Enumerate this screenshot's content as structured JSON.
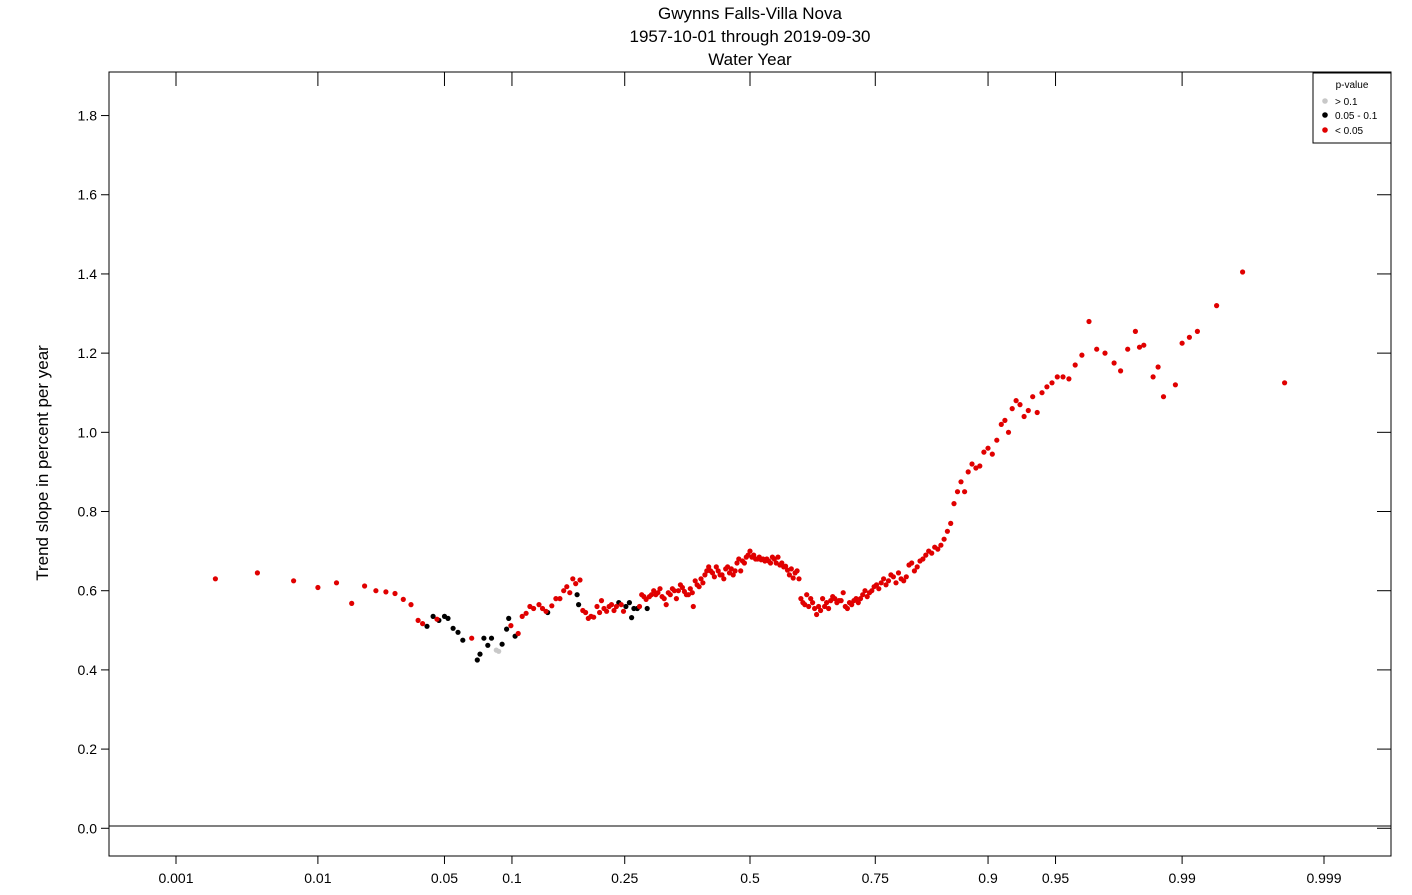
{
  "chart_data": {
    "type": "scatter",
    "title": "Gwynns Falls-Villa Nova",
    "subtitle": "1957-10-01 through 2019-09-30",
    "subtitle2": "Water Year",
    "xlabel": "",
    "ylabel": "Trend slope in percent per year",
    "x_scale": "probability (normal quantile)",
    "x_ticks": [
      "0.001",
      "0.01",
      "0.05",
      "0.1",
      "0.25",
      "0.5",
      "0.75",
      "0.9",
      "0.95",
      "0.99",
      "0.999"
    ],
    "y_ticks": [
      "0.0",
      "0.2",
      "0.4",
      "0.6",
      "0.8",
      "1.0",
      "1.2",
      "1.4",
      "1.6",
      "1.8"
    ],
    "ylim": [
      -0.07,
      1.91
    ],
    "grid": false,
    "legend": {
      "title": "p-value",
      "position": "top-right",
      "entries": [
        {
          "label": "> 0.1",
          "color": "#c8c8c8"
        },
        {
          "label": "0.05 - 0.1",
          "color": "#000000"
        },
        {
          "label": "< 0.05",
          "color": "#e00000"
        }
      ]
    },
    "series": [
      {
        "color": "#c8c8c8",
        "points": [
          [
            0.086,
            0.45
          ],
          [
            0.088,
            0.447
          ]
        ]
      },
      {
        "color": "#000000",
        "points": [
          [
            0.041,
            0.51
          ],
          [
            0.044,
            0.535
          ],
          [
            0.047,
            0.525
          ],
          [
            0.05,
            0.535
          ],
          [
            0.052,
            0.53
          ],
          [
            0.055,
            0.505
          ],
          [
            0.058,
            0.495
          ],
          [
            0.061,
            0.475
          ],
          [
            0.071,
            0.425
          ],
          [
            0.073,
            0.44
          ],
          [
            0.076,
            0.48
          ],
          [
            0.079,
            0.462
          ],
          [
            0.082,
            0.48
          ],
          [
            0.091,
            0.465
          ],
          [
            0.095,
            0.503
          ],
          [
            0.097,
            0.53
          ],
          [
            0.103,
            0.485
          ],
          [
            0.138,
            0.545
          ],
          [
            0.176,
            0.59
          ],
          [
            0.178,
            0.565
          ],
          [
            0.24,
            0.57
          ],
          [
            0.252,
            0.56
          ],
          [
            0.258,
            0.57
          ],
          [
            0.262,
            0.532
          ],
          [
            0.266,
            0.555
          ],
          [
            0.272,
            0.555
          ],
          [
            0.29,
            0.555
          ]
        ]
      },
      {
        "color": "#e00000",
        "points": [
          [
            0.002,
            0.63
          ],
          [
            0.004,
            0.645
          ],
          [
            0.007,
            0.625
          ],
          [
            0.01,
            0.608
          ],
          [
            0.013,
            0.62
          ],
          [
            0.016,
            0.568
          ],
          [
            0.019,
            0.612
          ],
          [
            0.022,
            0.6
          ],
          [
            0.025,
            0.597
          ],
          [
            0.028,
            0.593
          ],
          [
            0.031,
            0.578
          ],
          [
            0.034,
            0.565
          ],
          [
            0.037,
            0.525
          ],
          [
            0.039,
            0.517
          ],
          [
            0.046,
            0.528
          ],
          [
            0.067,
            0.48
          ],
          [
            0.099,
            0.512
          ],
          [
            0.106,
            0.492
          ],
          [
            0.11,
            0.535
          ],
          [
            0.114,
            0.543
          ],
          [
            0.118,
            0.56
          ],
          [
            0.122,
            0.555
          ],
          [
            0.128,
            0.565
          ],
          [
            0.132,
            0.555
          ],
          [
            0.136,
            0.548
          ],
          [
            0.143,
            0.562
          ],
          [
            0.148,
            0.58
          ],
          [
            0.153,
            0.58
          ],
          [
            0.158,
            0.6
          ],
          [
            0.162,
            0.61
          ],
          [
            0.166,
            0.595
          ],
          [
            0.17,
            0.63
          ],
          [
            0.174,
            0.618
          ],
          [
            0.18,
            0.627
          ],
          [
            0.184,
            0.55
          ],
          [
            0.188,
            0.545
          ],
          [
            0.192,
            0.53
          ],
          [
            0.196,
            0.535
          ],
          [
            0.2,
            0.533
          ],
          [
            0.205,
            0.56
          ],
          [
            0.209,
            0.545
          ],
          [
            0.212,
            0.575
          ],
          [
            0.216,
            0.555
          ],
          [
            0.22,
            0.548
          ],
          [
            0.224,
            0.56
          ],
          [
            0.228,
            0.565
          ],
          [
            0.232,
            0.55
          ],
          [
            0.236,
            0.56
          ],
          [
            0.244,
            0.565
          ],
          [
            0.248,
            0.548
          ],
          [
            0.276,
            0.56
          ],
          [
            0.28,
            0.59
          ],
          [
            0.284,
            0.585
          ],
          [
            0.288,
            0.578
          ],
          [
            0.294,
            0.585
          ],
          [
            0.298,
            0.59
          ],
          [
            0.302,
            0.6
          ],
          [
            0.306,
            0.59
          ],
          [
            0.31,
            0.595
          ],
          [
            0.314,
            0.605
          ],
          [
            0.318,
            0.585
          ],
          [
            0.322,
            0.58
          ],
          [
            0.326,
            0.565
          ],
          [
            0.33,
            0.595
          ],
          [
            0.334,
            0.59
          ],
          [
            0.338,
            0.605
          ],
          [
            0.342,
            0.6
          ],
          [
            0.346,
            0.58
          ],
          [
            0.35,
            0.6
          ],
          [
            0.354,
            0.615
          ],
          [
            0.358,
            0.608
          ],
          [
            0.362,
            0.598
          ],
          [
            0.366,
            0.59
          ],
          [
            0.37,
            0.59
          ],
          [
            0.374,
            0.605
          ],
          [
            0.378,
            0.595
          ],
          [
            0.38,
            0.56
          ],
          [
            0.384,
            0.625
          ],
          [
            0.388,
            0.615
          ],
          [
            0.392,
            0.61
          ],
          [
            0.396,
            0.63
          ],
          [
            0.4,
            0.62
          ],
          [
            0.404,
            0.64
          ],
          [
            0.408,
            0.65
          ],
          [
            0.412,
            0.66
          ],
          [
            0.416,
            0.65
          ],
          [
            0.42,
            0.645
          ],
          [
            0.424,
            0.635
          ],
          [
            0.428,
            0.66
          ],
          [
            0.432,
            0.65
          ],
          [
            0.436,
            0.64
          ],
          [
            0.44,
            0.64
          ],
          [
            0.444,
            0.63
          ],
          [
            0.448,
            0.655
          ],
          [
            0.452,
            0.66
          ],
          [
            0.456,
            0.645
          ],
          [
            0.46,
            0.655
          ],
          [
            0.464,
            0.64
          ],
          [
            0.468,
            0.65
          ],
          [
            0.472,
            0.67
          ],
          [
            0.476,
            0.68
          ],
          [
            0.48,
            0.65
          ],
          [
            0.484,
            0.675
          ],
          [
            0.488,
            0.67
          ],
          [
            0.492,
            0.685
          ],
          [
            0.496,
            0.69
          ],
          [
            0.5,
            0.7
          ],
          [
            0.504,
            0.685
          ],
          [
            0.508,
            0.69
          ],
          [
            0.512,
            0.68
          ],
          [
            0.516,
            0.68
          ],
          [
            0.52,
            0.685
          ],
          [
            0.524,
            0.678
          ],
          [
            0.528,
            0.68
          ],
          [
            0.532,
            0.675
          ],
          [
            0.536,
            0.68
          ],
          [
            0.54,
            0.675
          ],
          [
            0.544,
            0.67
          ],
          [
            0.548,
            0.685
          ],
          [
            0.552,
            0.68
          ],
          [
            0.556,
            0.67
          ],
          [
            0.56,
            0.685
          ],
          [
            0.564,
            0.665
          ],
          [
            0.568,
            0.67
          ],
          [
            0.572,
            0.66
          ],
          [
            0.576,
            0.662
          ],
          [
            0.58,
            0.652
          ],
          [
            0.584,
            0.64
          ],
          [
            0.588,
            0.655
          ],
          [
            0.592,
            0.632
          ],
          [
            0.596,
            0.645
          ],
          [
            0.6,
            0.65
          ],
          [
            0.604,
            0.63
          ],
          [
            0.608,
            0.58
          ],
          [
            0.612,
            0.57
          ],
          [
            0.616,
            0.565
          ],
          [
            0.62,
            0.59
          ],
          [
            0.624,
            0.56
          ],
          [
            0.628,
            0.58
          ],
          [
            0.632,
            0.57
          ],
          [
            0.636,
            0.555
          ],
          [
            0.64,
            0.54
          ],
          [
            0.644,
            0.56
          ],
          [
            0.648,
            0.55
          ],
          [
            0.652,
            0.58
          ],
          [
            0.656,
            0.56
          ],
          [
            0.66,
            0.57
          ],
          [
            0.664,
            0.555
          ],
          [
            0.668,
            0.575
          ],
          [
            0.672,
            0.585
          ],
          [
            0.676,
            0.58
          ],
          [
            0.68,
            0.57
          ],
          [
            0.684,
            0.575
          ],
          [
            0.688,
            0.575
          ],
          [
            0.692,
            0.595
          ],
          [
            0.696,
            0.56
          ],
          [
            0.7,
            0.555
          ],
          [
            0.704,
            0.57
          ],
          [
            0.708,
            0.565
          ],
          [
            0.712,
            0.575
          ],
          [
            0.716,
            0.58
          ],
          [
            0.72,
            0.57
          ],
          [
            0.724,
            0.58
          ],
          [
            0.728,
            0.59
          ],
          [
            0.732,
            0.6
          ],
          [
            0.736,
            0.585
          ],
          [
            0.74,
            0.595
          ],
          [
            0.744,
            0.6
          ],
          [
            0.748,
            0.61
          ],
          [
            0.752,
            0.615
          ],
          [
            0.756,
            0.605
          ],
          [
            0.76,
            0.62
          ],
          [
            0.764,
            0.63
          ],
          [
            0.768,
            0.615
          ],
          [
            0.772,
            0.625
          ],
          [
            0.776,
            0.64
          ],
          [
            0.78,
            0.635
          ],
          [
            0.784,
            0.62
          ],
          [
            0.788,
            0.645
          ],
          [
            0.792,
            0.63
          ],
          [
            0.796,
            0.625
          ],
          [
            0.8,
            0.635
          ],
          [
            0.804,
            0.665
          ],
          [
            0.808,
            0.67
          ],
          [
            0.812,
            0.65
          ],
          [
            0.816,
            0.66
          ],
          [
            0.82,
            0.675
          ],
          [
            0.824,
            0.68
          ],
          [
            0.828,
            0.69
          ],
          [
            0.832,
            0.7
          ],
          [
            0.836,
            0.695
          ],
          [
            0.84,
            0.71
          ],
          [
            0.844,
            0.705
          ],
          [
            0.848,
            0.715
          ],
          [
            0.852,
            0.73
          ],
          [
            0.856,
            0.75
          ],
          [
            0.86,
            0.77
          ],
          [
            0.864,
            0.82
          ],
          [
            0.868,
            0.85
          ],
          [
            0.872,
            0.875
          ],
          [
            0.876,
            0.85
          ],
          [
            0.88,
            0.9
          ],
          [
            0.884,
            0.92
          ],
          [
            0.888,
            0.91
          ],
          [
            0.892,
            0.915
          ],
          [
            0.896,
            0.95
          ],
          [
            0.9,
            0.96
          ],
          [
            0.904,
            0.945
          ],
          [
            0.908,
            0.98
          ],
          [
            0.912,
            1.02
          ],
          [
            0.915,
            1.03
          ],
          [
            0.918,
            1.0
          ],
          [
            0.921,
            1.06
          ],
          [
            0.924,
            1.08
          ],
          [
            0.927,
            1.07
          ],
          [
            0.93,
            1.04
          ],
          [
            0.933,
            1.055
          ],
          [
            0.936,
            1.09
          ],
          [
            0.939,
            1.05
          ],
          [
            0.942,
            1.1
          ],
          [
            0.945,
            1.115
          ],
          [
            0.948,
            1.125
          ],
          [
            0.951,
            1.14
          ],
          [
            0.954,
            1.14
          ],
          [
            0.957,
            1.135
          ],
          [
            0.96,
            1.17
          ],
          [
            0.963,
            1.195
          ],
          [
            0.966,
            1.28
          ],
          [
            0.969,
            1.21
          ],
          [
            0.972,
            1.2
          ],
          [
            0.975,
            1.175
          ],
          [
            0.977,
            1.155
          ],
          [
            0.979,
            1.21
          ],
          [
            0.981,
            1.255
          ],
          [
            0.982,
            1.215
          ],
          [
            0.983,
            1.22
          ],
          [
            0.985,
            1.14
          ],
          [
            0.986,
            1.165
          ],
          [
            0.987,
            1.09
          ],
          [
            0.989,
            1.12
          ],
          [
            0.99,
            1.225
          ],
          [
            0.991,
            1.24
          ],
          [
            0.992,
            1.255
          ],
          [
            0.994,
            1.32
          ],
          [
            0.996,
            1.405
          ],
          [
            0.998,
            1.125
          ]
        ]
      }
    ]
  }
}
